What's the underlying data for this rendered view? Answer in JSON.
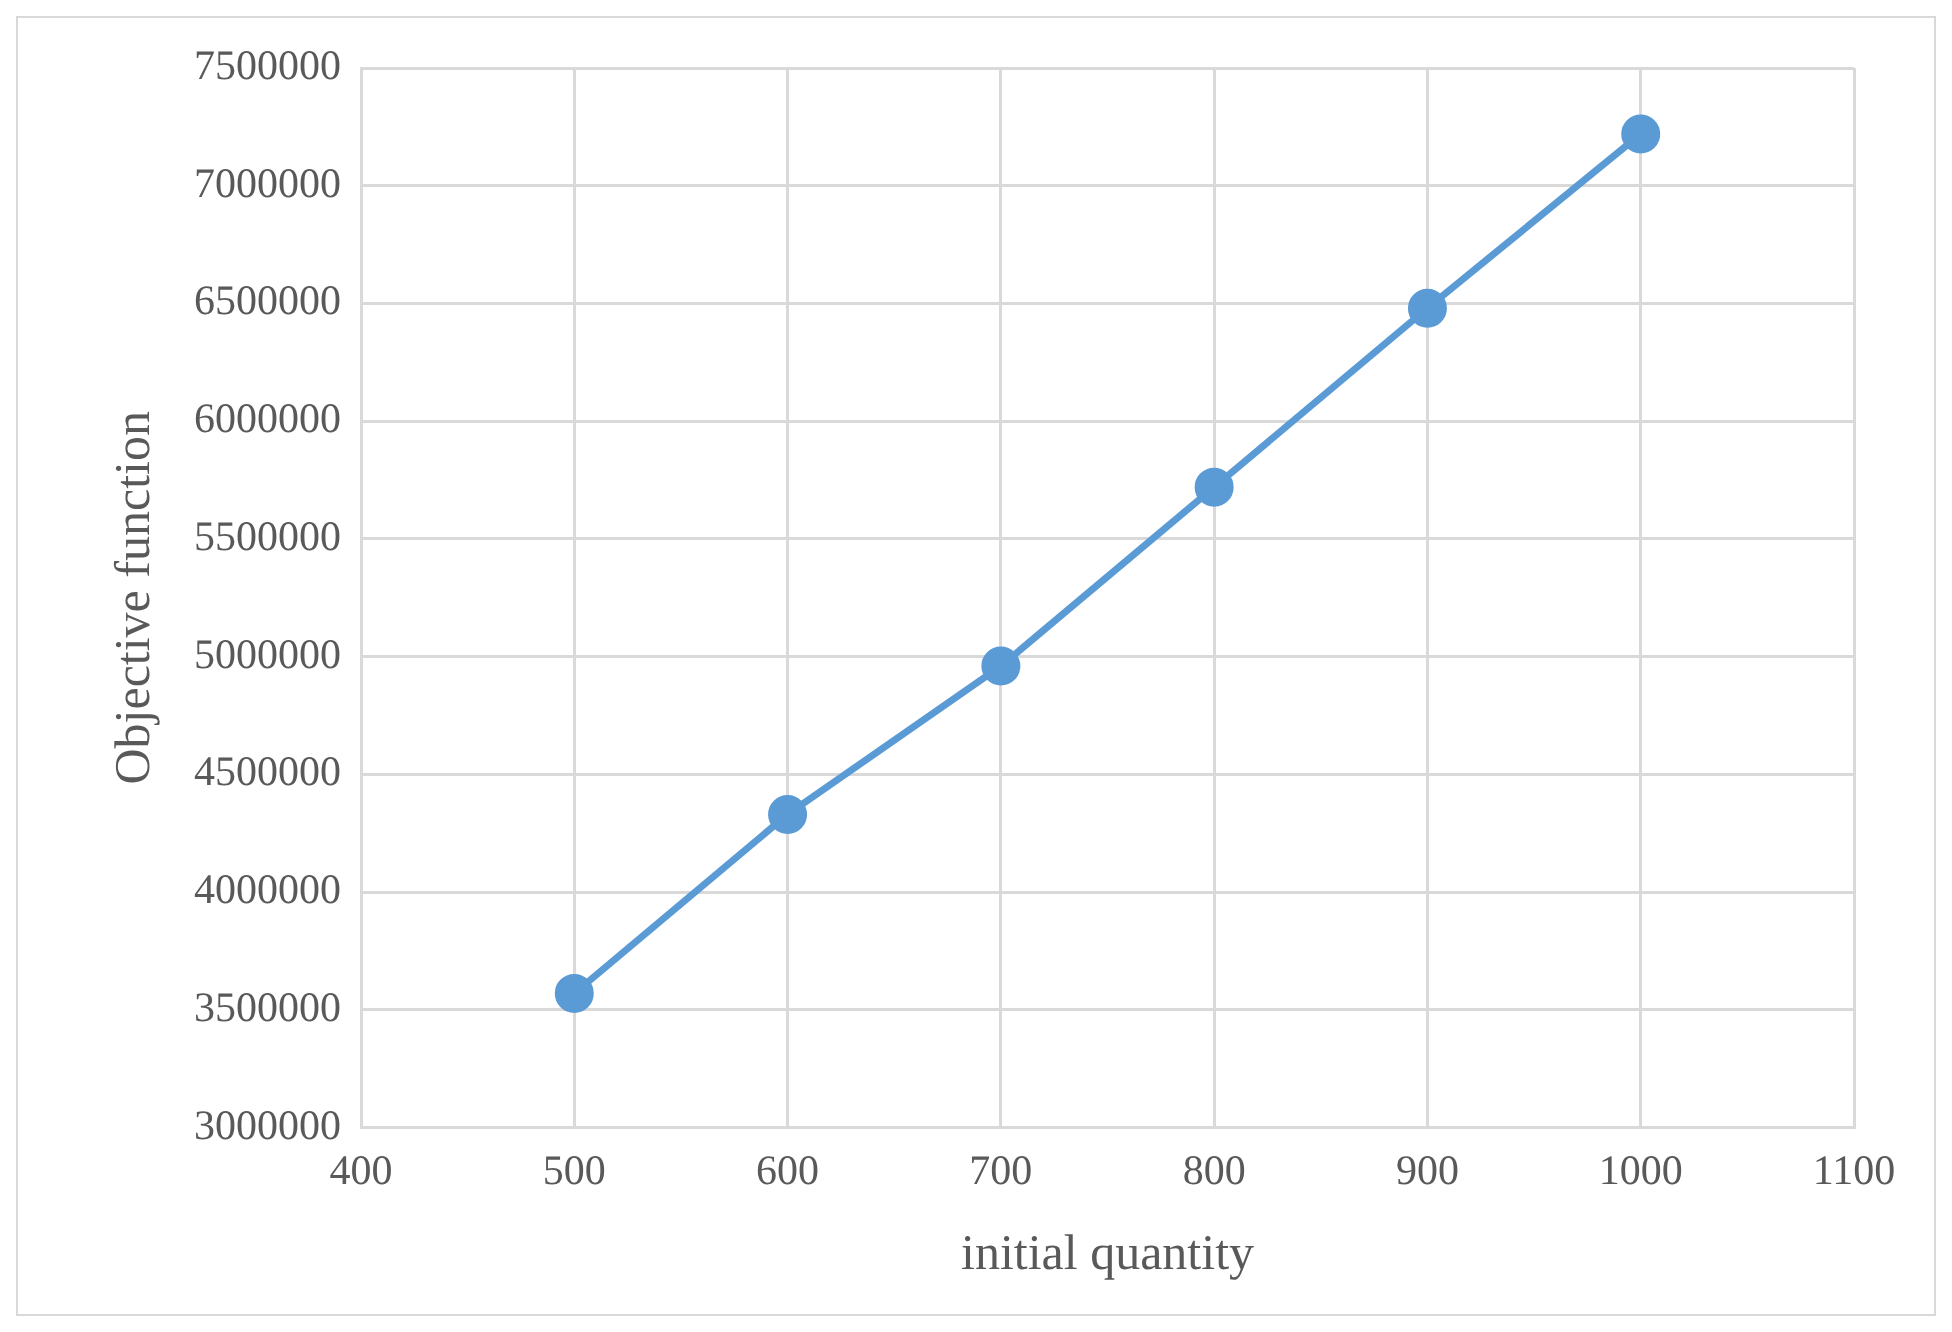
{
  "chart_data": {
    "type": "line",
    "xlabel": "initial quantity",
    "ylabel": "Objective function",
    "x": [
      500,
      600,
      700,
      800,
      900,
      1000
    ],
    "series": [
      {
        "color": "#5b9bd5",
        "values": [
          3570000,
          4330000,
          4960000,
          5720000,
          6480000,
          7220000
        ]
      }
    ],
    "xlim": [
      400,
      1100
    ],
    "xticks": [
      400,
      500,
      600,
      700,
      800,
      900,
      1000,
      1100
    ],
    "ylim": [
      3000000,
      7500000
    ],
    "yticks": [
      3000000,
      3500000,
      4000000,
      4500000,
      5000000,
      5500000,
      6000000,
      6500000,
      7000000,
      7500000
    ],
    "grid": true,
    "legend": false,
    "marker": "circle",
    "line_style": "solid"
  }
}
